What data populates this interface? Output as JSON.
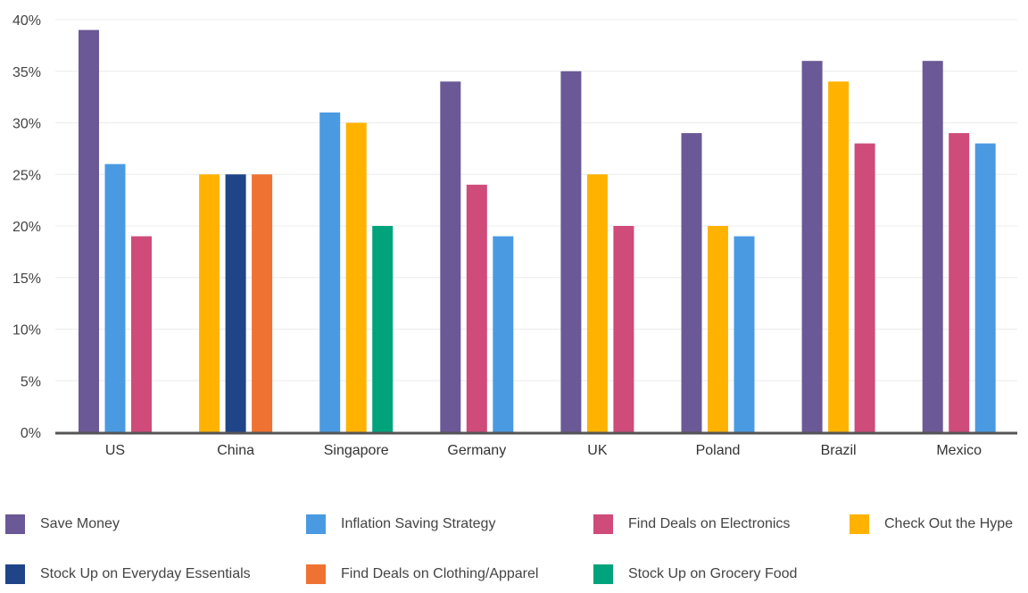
{
  "chart_data": {
    "type": "bar",
    "title": "",
    "xlabel": "",
    "ylabel": "",
    "ylim": [
      0,
      40
    ],
    "yticks": [
      "0%",
      "5%",
      "10%",
      "15%",
      "20%",
      "25%",
      "30%",
      "35%",
      "40%"
    ],
    "grid": true,
    "legend_position": "bottom",
    "categories": [
      "US",
      "China",
      "Singapore",
      "Germany",
      "UK",
      "Poland",
      "Brazil",
      "Mexico"
    ],
    "series_legend": [
      {
        "name": "Save Money",
        "color": "#6a5996"
      },
      {
        "name": "Inflation Saving Strategy",
        "color": "#4a9ae2"
      },
      {
        "name": "Find Deals on Electronics",
        "color": "#cf4b7a"
      },
      {
        "name": "Check Out the Hype",
        "color": "#ffb300"
      },
      {
        "name": "Stock Up on Everyday Essentials",
        "color": "#1f4488"
      },
      {
        "name": "Find Deals on Clothing/Apparel",
        "color": "#f07232"
      },
      {
        "name": "Stock Up on Grocery Food",
        "color": "#00a37c"
      }
    ],
    "groups": [
      {
        "category": "US",
        "bars": [
          {
            "series": "Save Money",
            "value": 39
          },
          {
            "series": "Inflation Saving Strategy",
            "value": 26
          },
          {
            "series": "Find Deals on Electronics",
            "value": 19
          }
        ]
      },
      {
        "category": "China",
        "bars": [
          {
            "series": "Check Out the Hype",
            "value": 25
          },
          {
            "series": "Stock Up on Everyday Essentials",
            "value": 25
          },
          {
            "series": "Find Deals on Clothing/Apparel",
            "value": 25
          }
        ]
      },
      {
        "category": "Singapore",
        "bars": [
          {
            "series": "Inflation Saving Strategy",
            "value": 31
          },
          {
            "series": "Check Out the Hype",
            "value": 30
          },
          {
            "series": "Stock Up on Grocery Food",
            "value": 20
          }
        ]
      },
      {
        "category": "Germany",
        "bars": [
          {
            "series": "Save Money",
            "value": 34
          },
          {
            "series": "Find Deals on Electronics",
            "value": 24
          },
          {
            "series": "Inflation Saving Strategy",
            "value": 19
          }
        ]
      },
      {
        "category": "UK",
        "bars": [
          {
            "series": "Save Money",
            "value": 35
          },
          {
            "series": "Check Out the Hype",
            "value": 25
          },
          {
            "series": "Find Deals on Electronics",
            "value": 20
          }
        ]
      },
      {
        "category": "Poland",
        "bars": [
          {
            "series": "Save Money",
            "value": 29
          },
          {
            "series": "Check Out the Hype",
            "value": 20
          },
          {
            "series": "Inflation Saving Strategy",
            "value": 19
          }
        ]
      },
      {
        "category": "Brazil",
        "bars": [
          {
            "series": "Save Money",
            "value": 36
          },
          {
            "series": "Check Out the Hype",
            "value": 34
          },
          {
            "series": "Find Deals on Electronics",
            "value": 28
          }
        ]
      },
      {
        "category": "Mexico",
        "bars": [
          {
            "series": "Save Money",
            "value": 36
          },
          {
            "series": "Find Deals on Electronics",
            "value": 29
          },
          {
            "series": "Inflation Saving Strategy",
            "value": 28
          }
        ]
      }
    ]
  }
}
